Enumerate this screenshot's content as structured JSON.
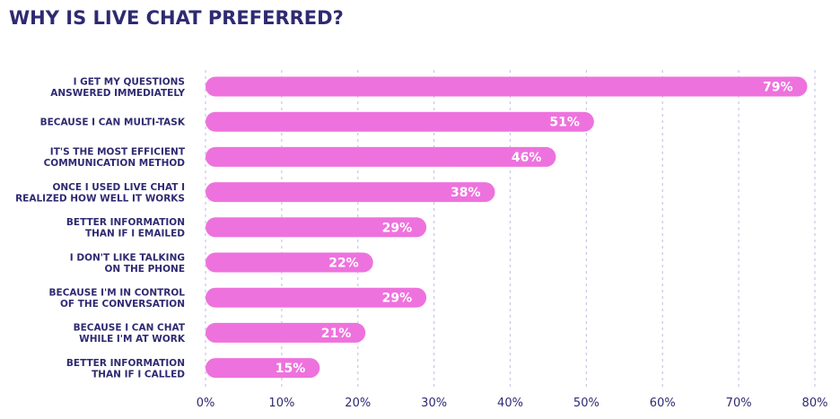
{
  "chart_data": {
    "type": "bar",
    "orientation": "horizontal",
    "title": "WHY IS LIVE CHAT PREFERRED?",
    "categories": [
      [
        "I GET MY QUESTIONS",
        "ANSWERED IMMEDIATELY"
      ],
      [
        "BECAUSE I CAN MULTI-TASK"
      ],
      [
        "IT'S THE MOST EFFICIENT",
        "COMMUNICATION METHOD"
      ],
      [
        "ONCE I USED LIVE CHAT I",
        "REALIZED HOW WELL IT WORKS"
      ],
      [
        "BETTER INFORMATION",
        "THAN IF I EMAILED"
      ],
      [
        "I DON'T LIKE TALKING",
        "ON THE PHONE"
      ],
      [
        "BECAUSE I'M IN CONTROL",
        "OF THE CONVERSATION"
      ],
      [
        "BECAUSE I CAN CHAT",
        "WHILE I'M AT WORK"
      ],
      [
        "BETTER INFORMATION",
        "THAN IF I CALLED"
      ]
    ],
    "values": [
      79,
      51,
      46,
      38,
      29,
      22,
      29,
      21,
      15
    ],
    "data_labels": [
      "79%",
      "51%",
      "46%",
      "38%",
      "29%",
      "22%",
      "29%",
      "21%",
      "15%"
    ],
    "xlim": [
      0,
      80
    ],
    "xticks": [
      0,
      10,
      20,
      30,
      40,
      50,
      60,
      70,
      80
    ],
    "xtick_labels": [
      "0%",
      "10%",
      "20%",
      "30%",
      "40%",
      "50%",
      "60%",
      "70%",
      "80%"
    ],
    "grid": "vertical dashed",
    "legend": "none",
    "colors": {
      "bar": "#ee72dd",
      "title": "#2e2a72",
      "text": "#2e2a72",
      "grid": "#c9c6e6",
      "value_label": "#ffffff"
    }
  }
}
